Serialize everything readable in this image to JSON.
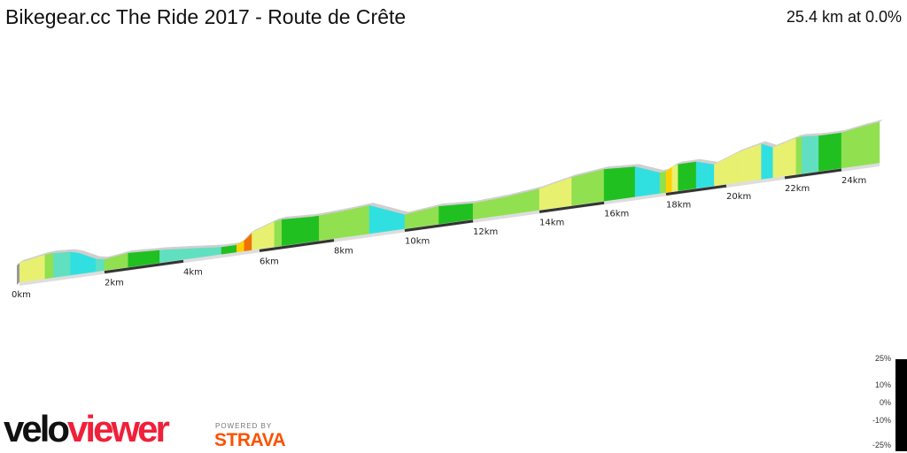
{
  "header": {
    "title": "Bikegear.cc The Ride 2017 - Route de Crête",
    "summary": "25.4 km at 0.0%"
  },
  "chart_data": {
    "type": "area",
    "subtype": "3d-elevation-profile",
    "total_distance_km": 25.4,
    "average_grade_pct": 0.0,
    "x_ticks": [
      "0km",
      "2km",
      "4km",
      "6km",
      "8km",
      "10km",
      "12km",
      "14km",
      "16km",
      "18km",
      "20km",
      "22km",
      "24km"
    ],
    "color_scale": {
      "labels": [
        "25%",
        "10%",
        "0%",
        "-10%",
        "-25%"
      ]
    }
  },
  "branding": {
    "logo_part1": "velo",
    "logo_part2": "viewer",
    "powered": "POWERED BY",
    "strava": "STRAVA"
  }
}
